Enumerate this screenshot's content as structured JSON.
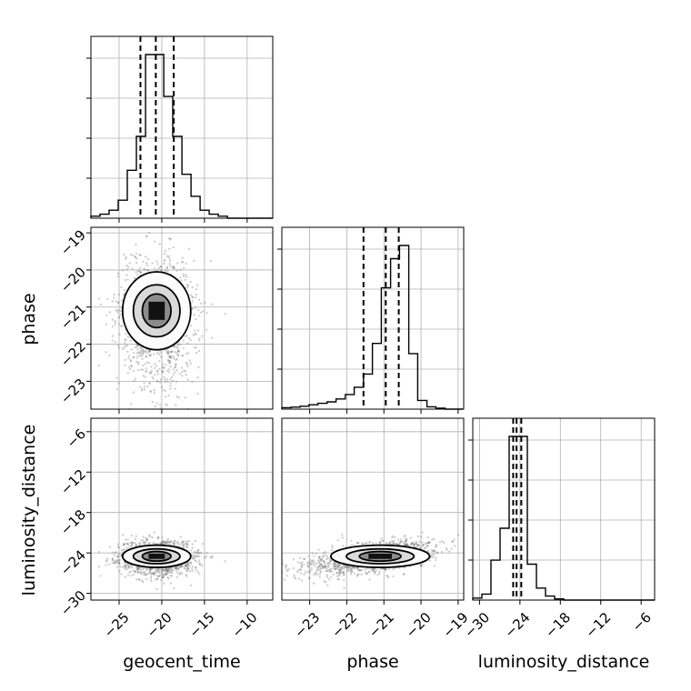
{
  "chart_data": {
    "type": "corner",
    "parameters": [
      "geocent_time",
      "phase",
      "luminosity_distance"
    ],
    "axis_labels": {
      "x": [
        "geocent_time",
        "phase",
        "luminosity_distance"
      ],
      "y_phase": "phase",
      "y_luminosity_distance": "luminosity_distance"
    },
    "ranges": {
      "geocent_time": [
        -28.3,
        -7.0
      ],
      "phase": [
        -23.75,
        -18.85
      ],
      "luminosity_distance": [
        -31.0,
        -4.0
      ]
    },
    "ticks": {
      "geocent_time": [
        -25,
        -20,
        -15,
        -10
      ],
      "phase": [
        -23,
        -22,
        -21,
        -20,
        -19
      ],
      "luminosity_distance": [
        -30,
        -24,
        -18,
        -12,
        -6
      ]
    },
    "tick_labels": {
      "geocent_time": [
        "−25",
        "−20",
        "−15",
        "−10"
      ],
      "phase": [
        "−23",
        "−22",
        "−21",
        "−20",
        "−19"
      ],
      "phase_y": [
        "−19",
        "−20",
        "−21",
        "−22",
        "−23"
      ],
      "luminosity_distance": [
        "−30",
        "−24",
        "−18",
        "−12",
        "−6"
      ],
      "luminosity_distance_y": [
        "−6",
        "−12",
        "−18",
        "−24",
        "−30"
      ]
    },
    "quantiles": {
      "geocent_time": [
        -22.5,
        -20.7,
        -18.6
      ],
      "phase": [
        -21.55,
        -20.95,
        -20.6
      ],
      "luminosity_distance": [
        -25.0,
        -24.5,
        -23.8
      ]
    },
    "histograms": {
      "geocent_time": {
        "edges": [
          -28.3,
          -27.23,
          -26.17,
          -25.1,
          -24.04,
          -22.97,
          -21.9,
          -20.84,
          -19.77,
          -18.71,
          -17.64,
          -16.57,
          -15.51,
          -14.44,
          -13.38,
          -12.31,
          -11.24,
          -10.18,
          -9.11,
          -8.05,
          -6.98
        ],
        "counts": [
          1,
          2,
          4,
          9,
          24,
          41,
          82,
          82,
          61,
          41,
          22,
          11,
          4,
          2,
          1,
          0,
          0,
          0,
          0,
          0
        ]
      },
      "phase": {
        "edges": [
          -23.75,
          -23.5,
          -23.26,
          -23.02,
          -22.78,
          -22.53,
          -22.29,
          -22.04,
          -21.8,
          -21.55,
          -21.31,
          -21.07,
          -20.82,
          -20.58,
          -20.33,
          -20.09,
          -19.84,
          -19.6,
          -19.35,
          -19.11,
          -18.87
        ],
        "counts": [
          0.5,
          0.7,
          1.0,
          1.5,
          2.0,
          2.5,
          3.5,
          5.0,
          7.5,
          12.0,
          22.5,
          41.5,
          51.5,
          56.0,
          19.0,
          3.0,
          0.8,
          0.3,
          0,
          0
        ]
      },
      "luminosity_distance": {
        "edges": [
          -31.0,
          -29.65,
          -28.3,
          -26.95,
          -25.6,
          -24.25,
          -22.9,
          -21.55,
          -20.2,
          -18.85,
          -17.5,
          -16.15,
          -14.8,
          -13.45,
          -12.1,
          -10.75,
          -9.4,
          -8.05,
          -6.7,
          -5.35,
          -4.0
        ],
        "counts": [
          0.5,
          1.5,
          10,
          18,
          41,
          41,
          9,
          3,
          1,
          0.3,
          0,
          0,
          0,
          0,
          0,
          0,
          0,
          0,
          0,
          0
        ]
      }
    },
    "distributions": {
      "geocent_time": {
        "mean": -20.6,
        "std": 2.1
      },
      "phase": {
        "mean": -21.1,
        "std": 0.7
      },
      "luminosity_distance": {
        "mean": -24.5,
        "std": 1.1
      }
    },
    "grid": true,
    "colors": {
      "line": "#000000",
      "points": "#555555",
      "grid": "#b0b0b0"
    }
  }
}
